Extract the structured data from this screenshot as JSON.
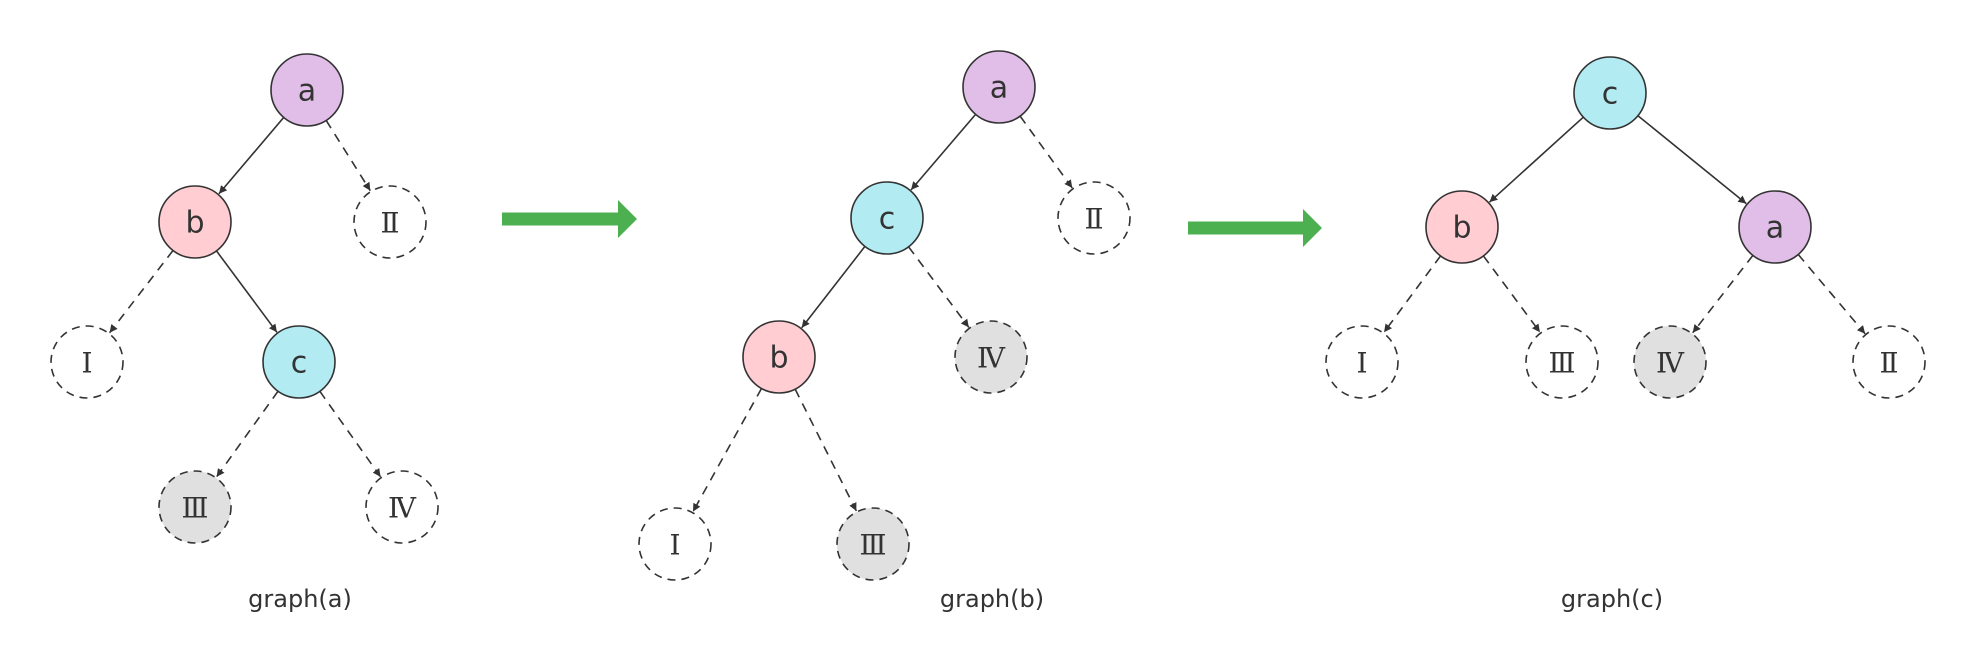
{
  "colors": {
    "a": "#E1BEE7",
    "b": "#FFCDD2",
    "c": "#B2EBF2",
    "hidden": "#E0E0E0",
    "none": "#FFFFFF",
    "stroke": "#333333",
    "arrow": "#4CAF50"
  },
  "graphs": [
    {
      "caption": "graph(a)",
      "nodes": [
        {
          "id": "a",
          "label": "a",
          "fill": "a",
          "dashed": false
        },
        {
          "id": "b",
          "label": "b",
          "fill": "b",
          "dashed": false
        },
        {
          "id": "II",
          "label": "Ⅱ",
          "fill": "none",
          "dashed": true
        },
        {
          "id": "I",
          "label": "Ⅰ",
          "fill": "none",
          "dashed": true
        },
        {
          "id": "c",
          "label": "c",
          "fill": "c",
          "dashed": false
        },
        {
          "id": "III",
          "label": "Ⅲ",
          "fill": "hidden",
          "dashed": true
        },
        {
          "id": "IV",
          "label": "Ⅳ",
          "fill": "none",
          "dashed": true
        }
      ],
      "edges": [
        {
          "from": "a",
          "to": "b",
          "dashed": false
        },
        {
          "from": "a",
          "to": "II",
          "dashed": true
        },
        {
          "from": "b",
          "to": "I",
          "dashed": true
        },
        {
          "from": "b",
          "to": "c",
          "dashed": false
        },
        {
          "from": "c",
          "to": "III",
          "dashed": true
        },
        {
          "from": "c",
          "to": "IV",
          "dashed": true
        }
      ]
    },
    {
      "caption": "graph(b)",
      "nodes": [
        {
          "id": "a",
          "label": "a",
          "fill": "a",
          "dashed": false
        },
        {
          "id": "c",
          "label": "c",
          "fill": "c",
          "dashed": false
        },
        {
          "id": "II",
          "label": "Ⅱ",
          "fill": "none",
          "dashed": true
        },
        {
          "id": "b",
          "label": "b",
          "fill": "b",
          "dashed": false
        },
        {
          "id": "IV",
          "label": "Ⅳ",
          "fill": "hidden",
          "dashed": true
        },
        {
          "id": "I",
          "label": "Ⅰ",
          "fill": "none",
          "dashed": true
        },
        {
          "id": "III",
          "label": "Ⅲ",
          "fill": "hidden",
          "dashed": true
        }
      ],
      "edges": [
        {
          "from": "a",
          "to": "c",
          "dashed": false
        },
        {
          "from": "a",
          "to": "II",
          "dashed": true
        },
        {
          "from": "c",
          "to": "b",
          "dashed": false
        },
        {
          "from": "c",
          "to": "IV",
          "dashed": true
        },
        {
          "from": "b",
          "to": "I",
          "dashed": true
        },
        {
          "from": "b",
          "to": "III",
          "dashed": true
        }
      ]
    },
    {
      "caption": "graph(c)",
      "nodes": [
        {
          "id": "c",
          "label": "c",
          "fill": "c",
          "dashed": false
        },
        {
          "id": "b",
          "label": "b",
          "fill": "b",
          "dashed": false
        },
        {
          "id": "a",
          "label": "a",
          "fill": "a",
          "dashed": false
        },
        {
          "id": "I",
          "label": "Ⅰ",
          "fill": "none",
          "dashed": true
        },
        {
          "id": "III",
          "label": "Ⅲ",
          "fill": "none",
          "dashed": true
        },
        {
          "id": "IV",
          "label": "Ⅳ",
          "fill": "hidden",
          "dashed": true
        },
        {
          "id": "II",
          "label": "Ⅱ",
          "fill": "none",
          "dashed": true
        }
      ],
      "edges": [
        {
          "from": "c",
          "to": "b",
          "dashed": false
        },
        {
          "from": "c",
          "to": "a",
          "dashed": false
        },
        {
          "from": "b",
          "to": "I",
          "dashed": true
        },
        {
          "from": "b",
          "to": "III",
          "dashed": true
        },
        {
          "from": "a",
          "to": "IV",
          "dashed": true
        },
        {
          "from": "a",
          "to": "II",
          "dashed": true
        }
      ]
    }
  ]
}
